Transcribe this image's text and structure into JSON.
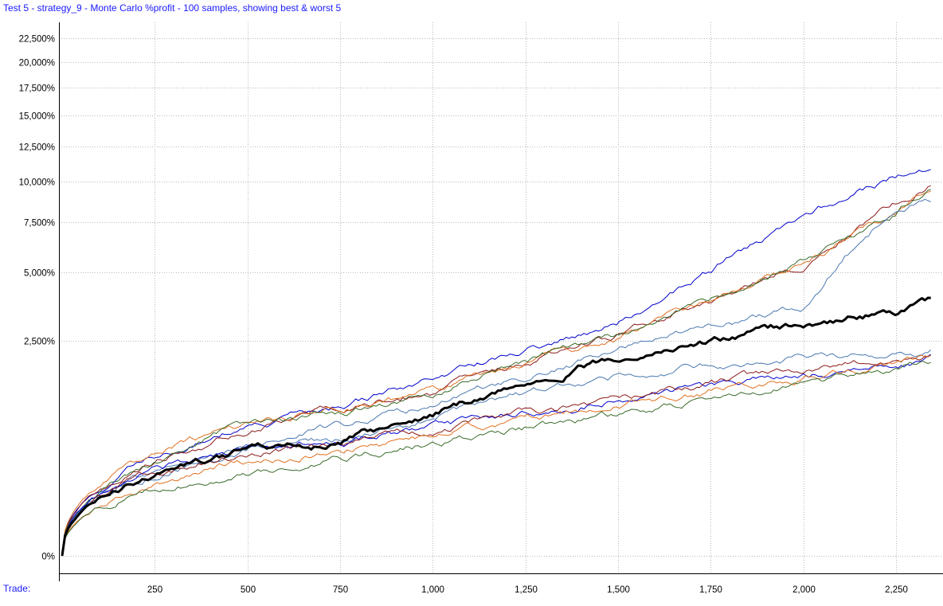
{
  "title": "Test 5 - strategy_9 - Monte Carlo %profit - 100 samples, showing best & worst 5",
  "x_axis_caption": "Trade:",
  "chart_data": {
    "type": "line",
    "title": "Test 5 - strategy_9 - Monte Carlo %profit - 100 samples, showing best & worst 5",
    "xlabel": "Trade:",
    "ylabel": "",
    "y_scale": "compressed (non-linear)",
    "grid": true,
    "xlim": [
      0,
      2400
    ],
    "x_ticks": [
      250,
      500,
      750,
      1000,
      1250,
      1500,
      1750,
      2000,
      2250
    ],
    "x_tick_labels": [
      "250",
      "500",
      "750",
      "1,000",
      "1,250",
      "1,500",
      "1,750",
      "2,000",
      "2,250"
    ],
    "y_ticks": [
      0,
      2500,
      5000,
      7500,
      10000,
      12500,
      15000,
      17500,
      20000,
      22500
    ],
    "y_tick_labels": [
      "0%",
      "2,500%",
      "5,000%",
      "7,500%",
      "10,000%",
      "12,500%",
      "15,000%",
      "17,500%",
      "20,000%",
      "22,500%"
    ],
    "x": [
      0,
      250,
      500,
      750,
      1000,
      1250,
      1500,
      1750,
      2000,
      2250,
      2350
    ],
    "series": [
      {
        "color": "#000000",
        "width": 3,
        "values": [
          0,
          220,
          430,
          490,
          890,
          1450,
          2050,
          2480,
          3000,
          3450,
          3750
        ]
      },
      {
        "color": "#0000cc",
        "width": 1,
        "values": [
          0,
          350,
          680,
          1000,
          1500,
          2200,
          3100,
          5100,
          7800,
          10300,
          11100
        ]
      },
      {
        "color": "#8b1a1a",
        "width": 1,
        "values": [
          0,
          320,
          640,
          950,
          1250,
          1950,
          2650,
          3800,
          5400,
          8500,
          10000
        ]
      },
      {
        "color": "#e07020",
        "width": 1,
        "values": [
          0,
          380,
          720,
          980,
          1270,
          1850,
          2550,
          3650,
          5300,
          8200,
          9700
        ]
      },
      {
        "color": "#3a6b2a",
        "width": 1,
        "values": [
          0,
          300,
          760,
          910,
          1220,
          1920,
          2650,
          3900,
          5500,
          8000,
          9900
        ]
      },
      {
        "color": "#4a78b0",
        "width": 1,
        "values": [
          0,
          260,
          510,
          710,
          980,
          1550,
          2200,
          2950,
          3550,
          8300,
          9000
        ]
      },
      {
        "color": "#4a78b0",
        "width": 1,
        "values": [
          0,
          240,
          420,
          560,
          820,
          1200,
          1560,
          1850,
          2050,
          2150,
          2250
        ]
      },
      {
        "color": "#0000cc",
        "width": 1,
        "values": [
          0,
          250,
          440,
          520,
          680,
          890,
          1120,
          1400,
          1620,
          1870,
          2050
        ]
      },
      {
        "color": "#8b1a1a",
        "width": 1,
        "values": [
          0,
          230,
          380,
          500,
          640,
          880,
          1120,
          1440,
          1690,
          1950,
          2100
        ]
      },
      {
        "color": "#e07020",
        "width": 1,
        "values": [
          0,
          160,
          320,
          430,
          590,
          800,
          1050,
          1310,
          1590,
          1880,
          2050
        ]
      },
      {
        "color": "#3a6b2a",
        "width": 1,
        "values": [
          0,
          140,
          220,
          350,
          500,
          680,
          880,
          1100,
          1400,
          1800,
          2000
        ]
      }
    ]
  }
}
